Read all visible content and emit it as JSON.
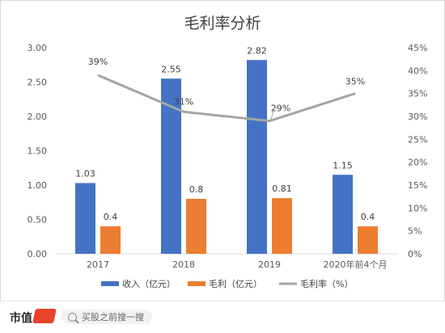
{
  "chart_data": {
    "type": "bar",
    "title": "毛利率分析",
    "categories": [
      "2017",
      "2018",
      "2019",
      "2020年前4个月"
    ],
    "series": [
      {
        "name": "收入（亿元）",
        "type": "bar",
        "axis": "left",
        "color": "#4472c4",
        "values": [
          1.03,
          2.55,
          2.82,
          1.15
        ],
        "labels": [
          "1.03",
          "2.55",
          "2.82",
          "1.15"
        ]
      },
      {
        "name": "毛利（亿元）",
        "type": "bar",
        "axis": "left",
        "color": "#ed7d31",
        "values": [
          0.4,
          0.8,
          0.81,
          0.4
        ],
        "labels": [
          "0.4",
          "0.8",
          "0.81",
          "0.4"
        ]
      },
      {
        "name": "毛利率（%）",
        "type": "line",
        "axis": "right",
        "color": "#a5a5a5",
        "values": [
          39,
          31,
          29,
          35
        ],
        "labels": [
          "39%",
          "31%",
          "29%",
          "35%"
        ]
      }
    ],
    "left_axis": {
      "min": 0,
      "max": 3.0,
      "ticks": [
        "0.00",
        "0.50",
        "1.00",
        "1.50",
        "2.00",
        "2.50",
        "3.00"
      ]
    },
    "right_axis": {
      "min": 0,
      "max": 45,
      "ticks": [
        "0%",
        "5%",
        "10%",
        "15%",
        "20%",
        "25%",
        "30%",
        "35%",
        "40%",
        "45%"
      ]
    },
    "grid": false,
    "legend_position": "bottom"
  },
  "footer": {
    "brand": "市值",
    "search_text": "买股之前搜一搜",
    "search_icon": "search-icon"
  }
}
